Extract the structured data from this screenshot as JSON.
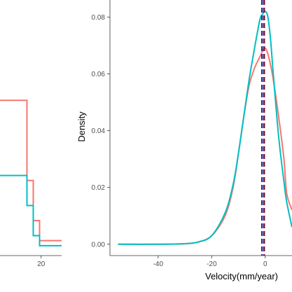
{
  "chart_data": [
    {
      "type": "histogram",
      "note_visible": "partially cropped panel on the left",
      "x_ticks": [
        "20"
      ],
      "xlim": [
        -15,
        33
      ],
      "ylim": [
        0,
        1
      ],
      "series": [
        {
          "name": "",
          "color": "#F8766D",
          "x": [
            7,
            11,
            15,
            19,
            33
          ],
          "y": [
            0.6,
            0.28,
            0.12,
            0.04,
            0.0
          ]
        },
        {
          "name": "",
          "color": "#00BFC4",
          "x": [
            7,
            11,
            15,
            19,
            33
          ],
          "y": [
            0.3,
            0.18,
            0.06,
            0.02,
            0.0
          ]
        }
      ]
    },
    {
      "type": "line",
      "xlabel": "Velocity(mm/year)",
      "ylabel": "Density",
      "xlim": [
        -58,
        10
      ],
      "ylim": [
        -0.004,
        0.086
      ],
      "x_ticks": [
        "-40",
        "-20",
        "0"
      ],
      "x_tick_values": [
        -40,
        -20,
        0
      ],
      "y_ticks": [
        "0.00",
        "0.02",
        "0.04",
        "0.06",
        "0.08"
      ],
      "y_tick_values": [
        0.0,
        0.02,
        0.04,
        0.06,
        0.08
      ],
      "grid": false,
      "series": [
        {
          "name": "",
          "color": "#F8766D",
          "x": [
            -55,
            -40,
            -30,
            -25,
            -20,
            -15,
            -12,
            -10,
            -8,
            -6,
            -4,
            -2,
            -1,
            0,
            1,
            2,
            3,
            5,
            7,
            8,
            10
          ],
          "y": [
            0.0,
            0.0,
            0.0002,
            0.0008,
            0.003,
            0.01,
            0.02,
            0.032,
            0.045,
            0.056,
            0.062,
            0.066,
            0.068,
            0.069,
            0.067,
            0.063,
            0.058,
            0.045,
            0.03,
            0.018,
            0.012
          ]
        },
        {
          "name": "",
          "color": "#00BFC4",
          "x": [
            -55,
            -40,
            -30,
            -25,
            -20,
            -15,
            -12,
            -10,
            -8,
            -6,
            -4,
            -2,
            -1,
            0,
            1,
            2,
            3,
            5,
            7,
            8,
            10
          ],
          "y": [
            0.0,
            0.0,
            0.0002,
            0.0008,
            0.003,
            0.011,
            0.021,
            0.032,
            0.045,
            0.058,
            0.069,
            0.079,
            0.081,
            0.082,
            0.08,
            0.072,
            0.06,
            0.038,
            0.022,
            0.015,
            0.006
          ]
        }
      ],
      "vlines": [
        {
          "x": -1.2,
          "color": "#2B2A8A",
          "style": "dashed"
        },
        {
          "x": -0.4,
          "color": "#7A0F3A",
          "style": "dashed"
        }
      ]
    }
  ]
}
